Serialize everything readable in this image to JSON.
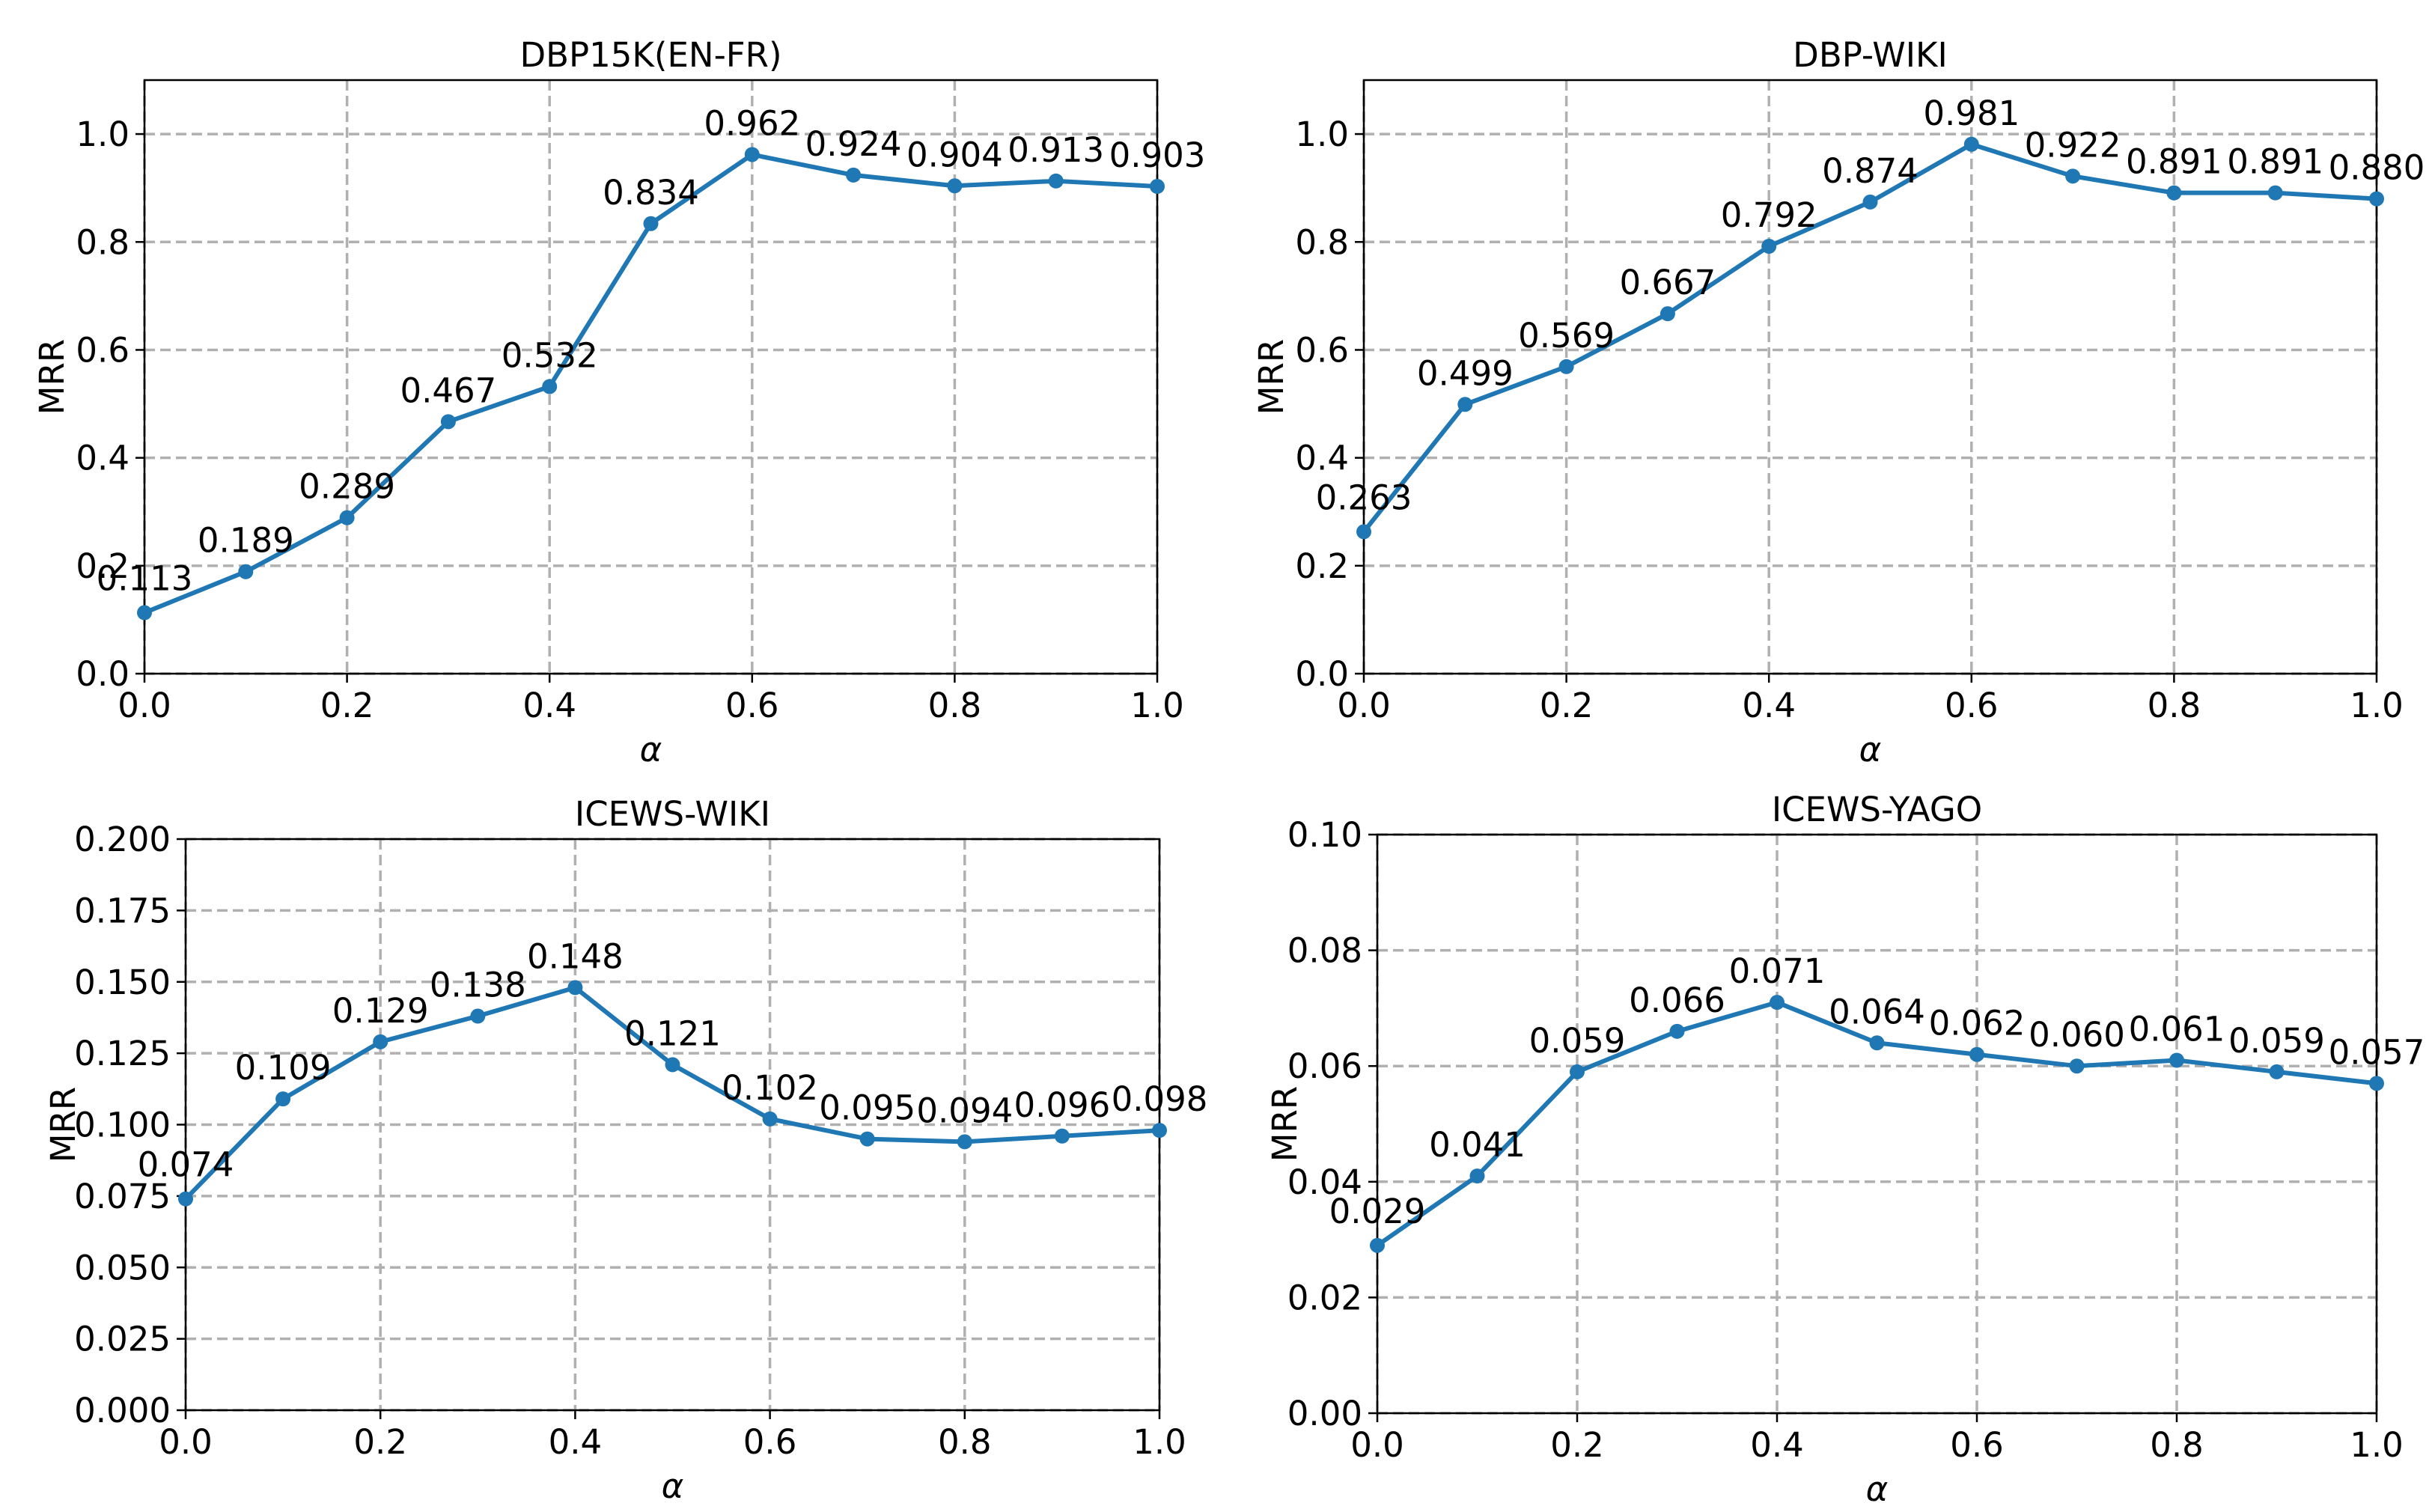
{
  "chart_data": [
    {
      "type": "line",
      "title": "DBP15K(EN-FR)",
      "xlabel": "α",
      "ylabel": "MRR",
      "x": [
        0.0,
        0.1,
        0.2,
        0.3,
        0.4,
        0.5,
        0.6,
        0.7,
        0.8,
        0.9,
        1.0
      ],
      "values": [
        0.113,
        0.189,
        0.289,
        0.467,
        0.532,
        0.834,
        0.962,
        0.924,
        0.904,
        0.913,
        0.903
      ],
      "data_labels": [
        "0.113",
        "0.189",
        "0.289",
        "0.467",
        "0.532",
        "0.834",
        "0.962",
        "0.924",
        "0.904",
        "0.913",
        "0.903"
      ],
      "xlim": [
        0.0,
        1.0
      ],
      "ylim": [
        0.0,
        1.1
      ],
      "xticks": [
        "0.0",
        "0.2",
        "0.4",
        "0.6",
        "0.8",
        "1.0"
      ],
      "yticks": [
        "0.0",
        "0.2",
        "0.4",
        "0.6",
        "0.8",
        "1.0"
      ],
      "grid": true,
      "color": "#1f77b4"
    },
    {
      "type": "line",
      "title": "DBP-WIKI",
      "xlabel": "α",
      "ylabel": "MRR",
      "x": [
        0.0,
        0.1,
        0.2,
        0.3,
        0.4,
        0.5,
        0.6,
        0.7,
        0.8,
        0.9,
        1.0
      ],
      "values": [
        0.263,
        0.499,
        0.569,
        0.667,
        0.792,
        0.874,
        0.981,
        0.922,
        0.891,
        0.891,
        0.88
      ],
      "data_labels": [
        "0.263",
        "0.499",
        "0.569",
        "0.667",
        "0.792",
        "0.874",
        "0.981",
        "0.922",
        "0.891",
        "0.891",
        "0.880"
      ],
      "xlim": [
        0.0,
        1.0
      ],
      "ylim": [
        0.0,
        1.1
      ],
      "xticks": [
        "0.0",
        "0.2",
        "0.4",
        "0.6",
        "0.8",
        "1.0"
      ],
      "yticks": [
        "0.0",
        "0.2",
        "0.4",
        "0.6",
        "0.8",
        "1.0"
      ],
      "grid": true,
      "color": "#1f77b4"
    },
    {
      "type": "line",
      "title": "ICEWS-WIKI",
      "xlabel": "α",
      "ylabel": "MRR",
      "x": [
        0.0,
        0.1,
        0.2,
        0.3,
        0.4,
        0.5,
        0.6,
        0.7,
        0.8,
        0.9,
        1.0
      ],
      "values": [
        0.074,
        0.109,
        0.129,
        0.138,
        0.148,
        0.121,
        0.102,
        0.095,
        0.094,
        0.096,
        0.098
      ],
      "data_labels": [
        "0.074",
        "0.109",
        "0.129",
        "0.138",
        "0.148",
        "0.121",
        "0.102",
        "0.095",
        "0.094",
        "0.096",
        "0.098"
      ],
      "xlim": [
        0.0,
        1.0
      ],
      "ylim": [
        0.0,
        0.2
      ],
      "xticks": [
        "0.0",
        "0.2",
        "0.4",
        "0.6",
        "0.8",
        "1.0"
      ],
      "yticks": [
        "0.000",
        "0.025",
        "0.050",
        "0.075",
        "0.100",
        "0.125",
        "0.150",
        "0.175",
        "0.200"
      ],
      "grid": true,
      "color": "#1f77b4"
    },
    {
      "type": "line",
      "title": "ICEWS-YAGO",
      "xlabel": "α",
      "ylabel": "MRR",
      "x": [
        0.0,
        0.1,
        0.2,
        0.3,
        0.4,
        0.5,
        0.6,
        0.7,
        0.8,
        0.9,
        1.0
      ],
      "values": [
        0.029,
        0.041,
        0.059,
        0.066,
        0.071,
        0.064,
        0.062,
        0.06,
        0.061,
        0.059,
        0.057
      ],
      "data_labels": [
        "0.029",
        "0.041",
        "0.059",
        "0.066",
        "0.071",
        "0.064",
        "0.062",
        "0.060",
        "0.061",
        "0.059",
        "0.057"
      ],
      "xlim": [
        0.0,
        1.0
      ],
      "ylim": [
        0.0,
        0.1
      ],
      "xticks": [
        "0.0",
        "0.2",
        "0.4",
        "0.6",
        "0.8",
        "1.0"
      ],
      "yticks": [
        "0.00",
        "0.02",
        "0.04",
        "0.06",
        "0.08",
        "0.10"
      ],
      "grid": true,
      "color": "#1f77b4"
    }
  ]
}
